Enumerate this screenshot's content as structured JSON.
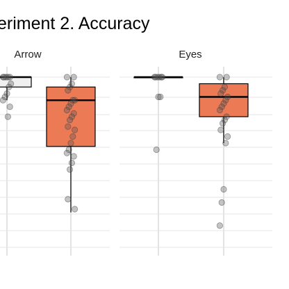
{
  "chart_data": {
    "type": "boxplot",
    "title": "eriment 2. Accuracy",
    "panels": [
      {
        "label": "Arrow",
        "boxes": [
          {
            "fill": "#f0f0f0",
            "q1": 0.97,
            "median": 1.0,
            "q3": 1.0,
            "whisker_low": 0.93,
            "whisker_high": 1.0,
            "points": [
              1.0,
              1.0,
              1.0,
              1.0,
              1.0,
              0.98,
              0.97,
              0.95,
              0.94,
              0.93,
              0.91,
              0.88
            ]
          },
          {
            "fill": "#ec7a55",
            "q1": 0.79,
            "median": 0.93,
            "q3": 0.97,
            "whisker_low": 0.59,
            "whisker_high": 1.0,
            "points": [
              1.0,
              1.0,
              0.98,
              0.97,
              0.96,
              0.93,
              0.93,
              0.92,
              0.91,
              0.9,
              0.89,
              0.88,
              0.87,
              0.85,
              0.84,
              0.82,
              0.8,
              0.78,
              0.77,
              0.76,
              0.74,
              0.72,
              0.63,
              0.6
            ]
          }
        ]
      },
      {
        "label": "Eyes",
        "boxes": [
          {
            "fill": "#f0f0f0",
            "q1": 1.0,
            "median": 1.0,
            "q3": 1.0,
            "whisker_low": 1.0,
            "whisker_high": 1.0,
            "points": [
              1.0,
              1.0,
              1.0,
              1.0,
              1.0,
              1.0,
              0.94,
              0.94,
              0.78
            ]
          },
          {
            "fill": "#ec7a55",
            "q1": 0.88,
            "median": 0.94,
            "q3": 0.98,
            "whisker_low": 0.8,
            "whisker_high": 1.0,
            "points": [
              1.0,
              1.0,
              0.97,
              0.96,
              0.95,
              0.94,
              0.93,
              0.92,
              0.91,
              0.9,
              0.88,
              0.87,
              0.86,
              0.84,
              0.82,
              0.8,
              0.66,
              0.62,
              0.55
            ]
          }
        ]
      }
    ]
  }
}
